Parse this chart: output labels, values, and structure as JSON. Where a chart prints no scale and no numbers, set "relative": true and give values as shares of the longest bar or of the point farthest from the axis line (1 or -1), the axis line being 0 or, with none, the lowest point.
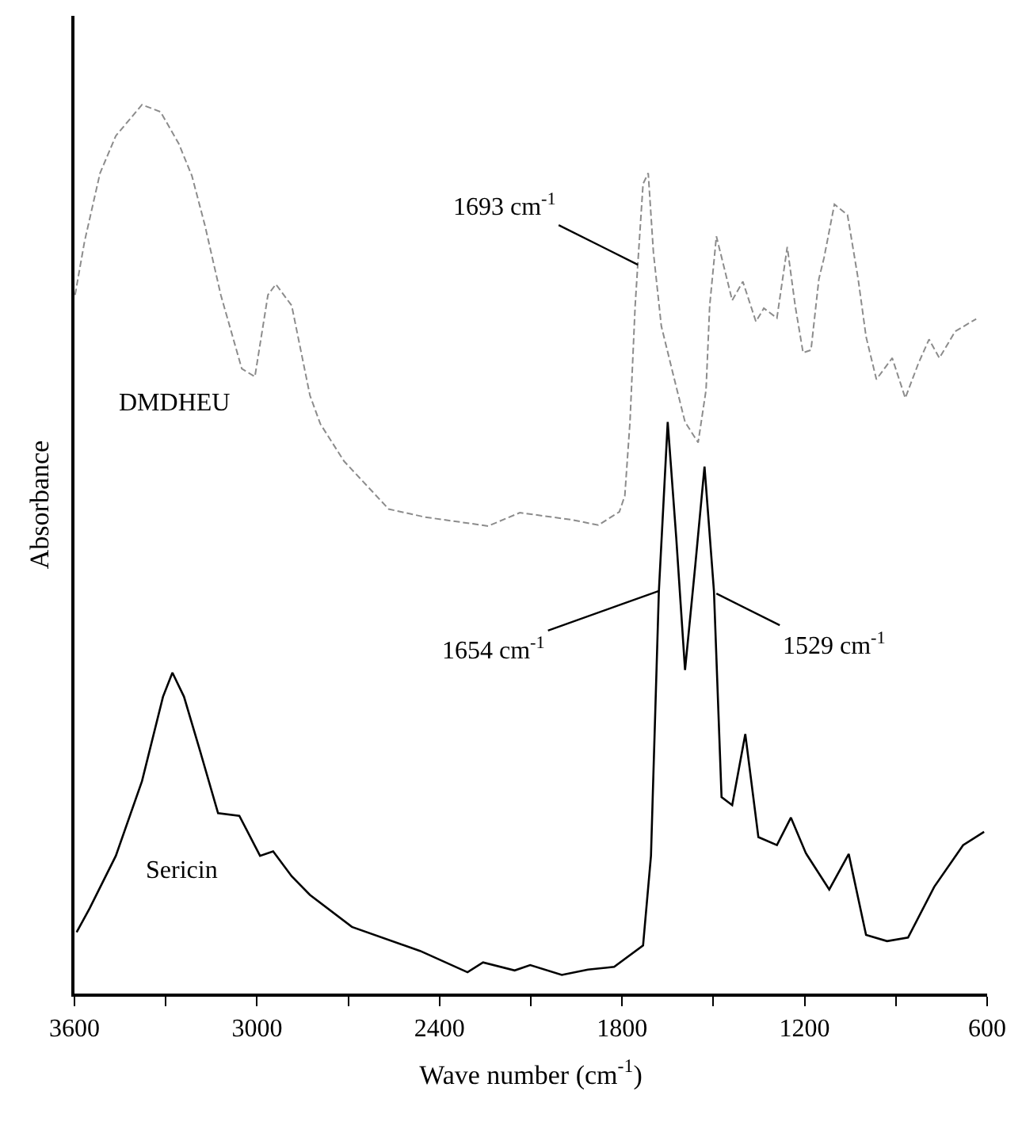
{
  "chart_data": {
    "type": "line",
    "relative": true,
    "xlabel": "Wave number (cm$^{-1}$)",
    "ylabel": "Absorbance",
    "xlim": [
      3600,
      600
    ],
    "xticks": [
      3600,
      {
        "value": 3300,
        "label": null
      },
      3000,
      {
        "value": 2700,
        "label": null
      },
      2400,
      {
        "value": 2100,
        "label": null
      },
      1800,
      {
        "value": 1500,
        "label": null
      },
      1200,
      {
        "value": 900,
        "label": null
      },
      600
    ],
    "legend": false,
    "marker": "none",
    "series": [
      {
        "name": "DMDHEU",
        "color": "#8c8c8c",
        "line_style": "dashed",
        "x": [
          3598,
          3567,
          3516,
          3464,
          3378,
          3317,
          3257,
          3214,
          3171,
          3119,
          3050,
          3007,
          2964,
          2938,
          2886,
          2826,
          2792,
          2714,
          2567,
          2447,
          2240,
          2136,
          1964,
          1878,
          1809,
          1791,
          1774,
          1757,
          1748,
          1731,
          1714,
          1697,
          1671,
          1628,
          1593,
          1550,
          1524,
          1512,
          1490,
          1464,
          1438,
          1403,
          1360,
          1334,
          1291,
          1257,
          1231,
          1205,
          1179,
          1153,
          1136,
          1102,
          1059,
          1024,
          998,
          964,
          912,
          869,
          826,
          791,
          757,
          705,
          636
        ],
        "values": [
          0.786,
          0.846,
          0.923,
          0.965,
          1.0,
          0.992,
          0.956,
          0.92,
          0.864,
          0.786,
          0.703,
          0.694,
          0.786,
          0.798,
          0.774,
          0.673,
          0.641,
          0.599,
          0.545,
          0.536,
          0.526,
          0.541,
          0.533,
          0.527,
          0.542,
          0.56,
          0.643,
          0.774,
          0.822,
          0.911,
          0.923,
          0.834,
          0.751,
          0.691,
          0.643,
          0.62,
          0.679,
          0.774,
          0.852,
          0.816,
          0.78,
          0.801,
          0.756,
          0.771,
          0.76,
          0.84,
          0.774,
          0.721,
          0.724,
          0.804,
          0.828,
          0.888,
          0.876,
          0.804,
          0.739,
          0.691,
          0.715,
          0.67,
          0.709,
          0.736,
          0.715,
          0.745,
          0.759
        ]
      },
      {
        "name": "Sericin",
        "color": "#000000",
        "line_style": "solid",
        "x": [
          3593,
          3550,
          3464,
          3378,
          3309,
          3278,
          3240,
          3188,
          3128,
          3058,
          2990,
          2947,
          2886,
          2826,
          2688,
          2464,
          2308,
          2257,
          2153,
          2102,
          1998,
          1912,
          1826,
          1731,
          1705,
          1679,
          1650,
          1622,
          1593,
          1559,
          1529,
          1498,
          1473,
          1438,
          1395,
          1352,
          1291,
          1245,
          1196,
          1119,
          1055,
          998,
          929,
          860,
          774,
          679,
          610
        ],
        "values": [
          0.069,
          0.096,
          0.155,
          0.239,
          0.334,
          0.361,
          0.334,
          0.274,
          0.203,
          0.2,
          0.155,
          0.16,
          0.132,
          0.111,
          0.075,
          0.048,
          0.024,
          0.035,
          0.026,
          0.032,
          0.021,
          0.027,
          0.03,
          0.054,
          0.155,
          0.453,
          0.643,
          0.513,
          0.364,
          0.483,
          0.593,
          0.453,
          0.221,
          0.212,
          0.292,
          0.176,
          0.167,
          0.198,
          0.158,
          0.117,
          0.157,
          0.066,
          0.059,
          0.063,
          0.12,
          0.167,
          0.182
        ]
      }
    ],
    "annotations": [
      {
        "text": "1693 cm$^{-1}$",
        "x": 1748,
        "y": 0.82
      },
      {
        "text": "1654 cm$^{-1}$",
        "x": 1679,
        "y": 0.453
      },
      {
        "text": "1529 cm$^{-1}$",
        "x": 1490,
        "y": 0.45
      }
    ]
  }
}
